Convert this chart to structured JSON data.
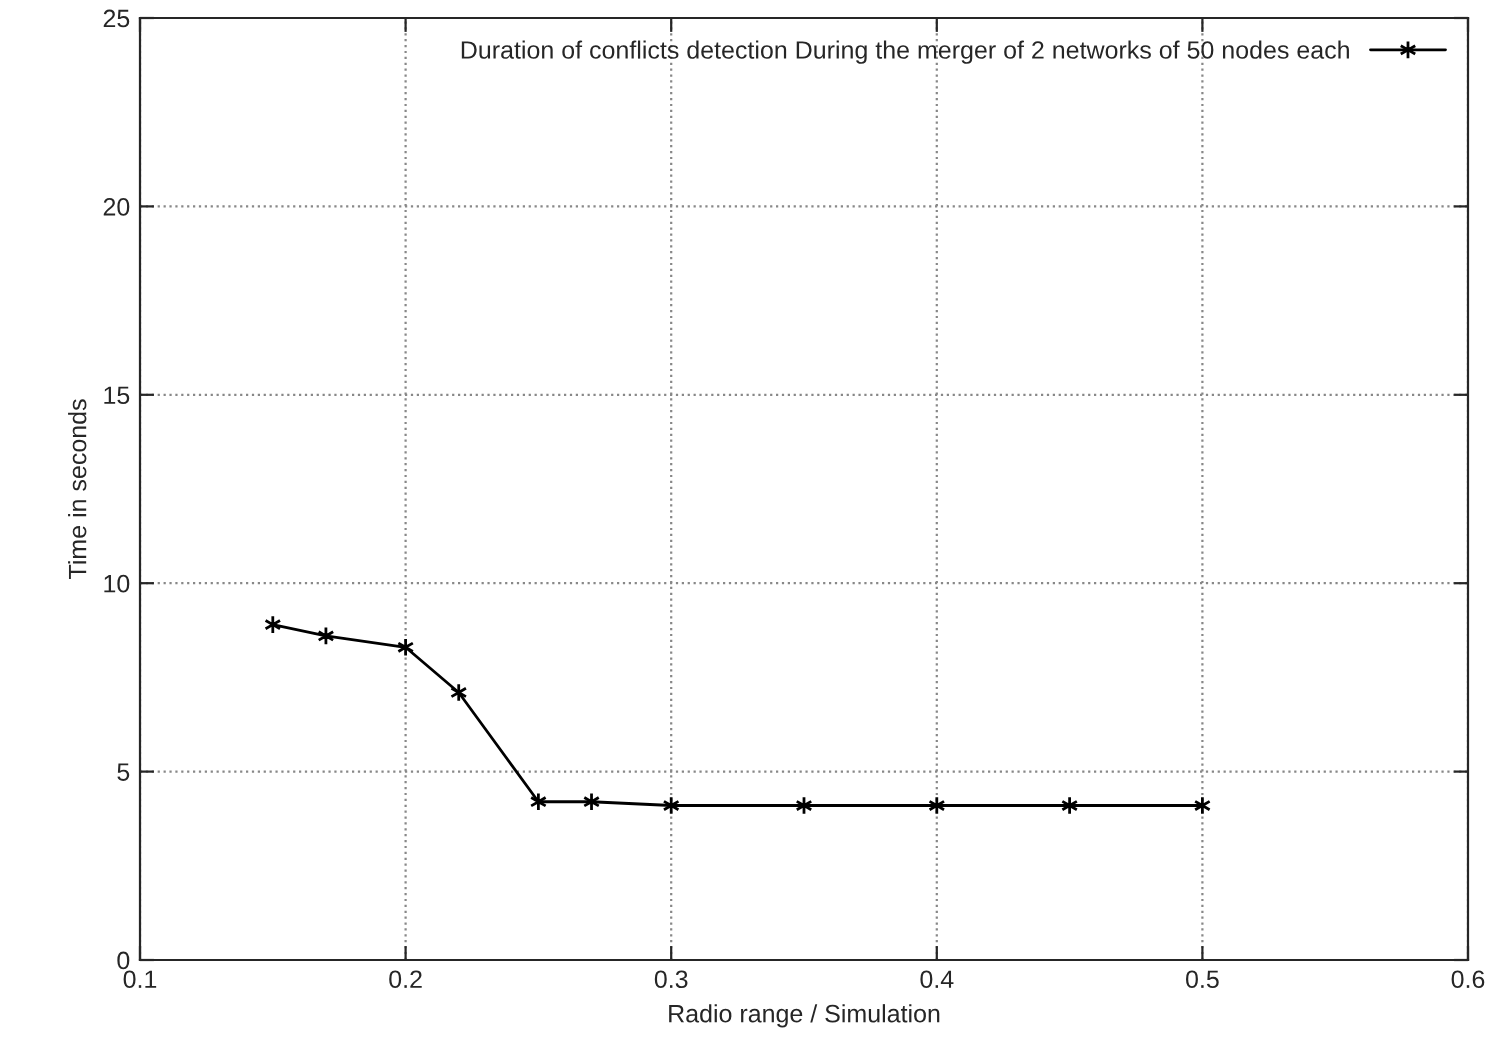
{
  "chart_data": {
    "type": "line",
    "xlabel": "Radio range / Simulation",
    "ylabel": "Time in seconds",
    "x": [
      0.15,
      0.17,
      0.2,
      0.22,
      0.25,
      0.27,
      0.3,
      0.35,
      0.4,
      0.45,
      0.5
    ],
    "series": [
      {
        "name": "Duration of conflicts detection During the merger of 2 networks of 50 nodes each",
        "color": "#000000",
        "values": [
          8.9,
          8.6,
          8.3,
          7.1,
          4.2,
          4.2,
          4.1,
          4.1,
          4.1,
          4.1,
          4.1
        ]
      }
    ],
    "xlim": [
      0.1,
      0.6
    ],
    "xticks": [
      0.1,
      0.2,
      0.3,
      0.4,
      0.5,
      0.6
    ],
    "ylim": [
      0,
      25
    ],
    "yticks": [
      0,
      5,
      10,
      15,
      20,
      25
    ],
    "grid": true,
    "legend": "top right",
    "marker": "cross",
    "line_style": "solid"
  }
}
